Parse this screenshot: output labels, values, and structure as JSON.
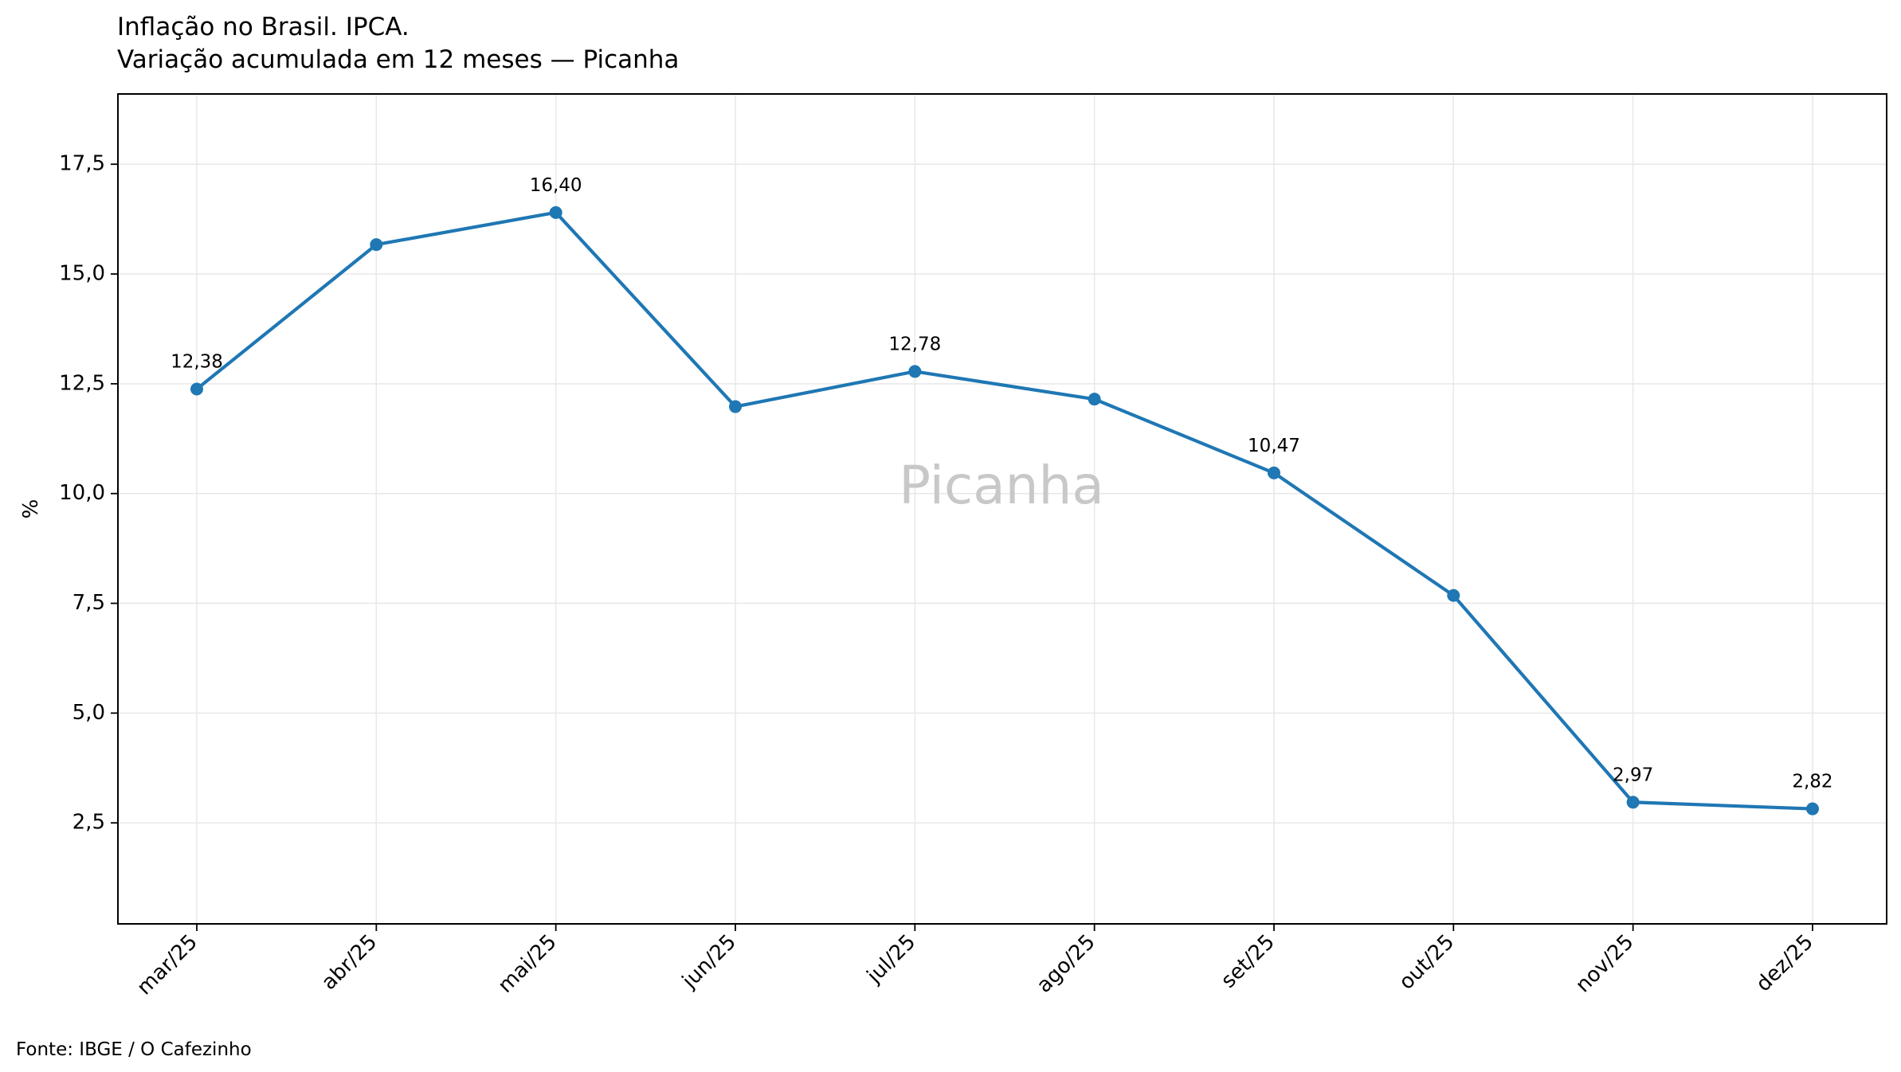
{
  "chart_data": {
    "type": "line",
    "title": "Inflação no Brasil. IPCA.",
    "subtitle": "Variação acumulada em 12 meses — Picanha",
    "xlabel": "",
    "ylabel": "%",
    "watermark": "Picanha",
    "source": "Fonte: IBGE / O Cafezinho",
    "categories": [
      "mar/25",
      "abr/25",
      "mai/25",
      "jun/25",
      "jul/25",
      "ago/25",
      "set/25",
      "out/25",
      "nov/25",
      "dez/25"
    ],
    "series": [
      {
        "values": [
          12.38,
          15.67,
          16.4,
          11.98,
          12.78,
          12.15,
          10.47,
          7.68,
          2.97,
          2.82
        ],
        "color": "#1f77b4"
      }
    ],
    "data_labels": [
      {
        "index": 0,
        "text": "12,38"
      },
      {
        "index": 2,
        "text": "16,40"
      },
      {
        "index": 4,
        "text": "12,78"
      },
      {
        "index": 6,
        "text": "10,47"
      },
      {
        "index": 8,
        "text": "2,97"
      },
      {
        "index": 9,
        "text": "2,82"
      }
    ],
    "ylim": [
      0.2,
      19.1
    ],
    "yticks": [
      2.5,
      5.0,
      7.5,
      10.0,
      12.5,
      15.0,
      17.5
    ],
    "ytick_labels": [
      "2,5",
      "5,0",
      "7,5",
      "10,0",
      "12,5",
      "15,0",
      "17,5"
    ],
    "grid": true,
    "legend": "none",
    "colors": {
      "line": "#1f77b4",
      "grid": "#e8e8e8",
      "watermark": "#c8c8c8"
    }
  }
}
